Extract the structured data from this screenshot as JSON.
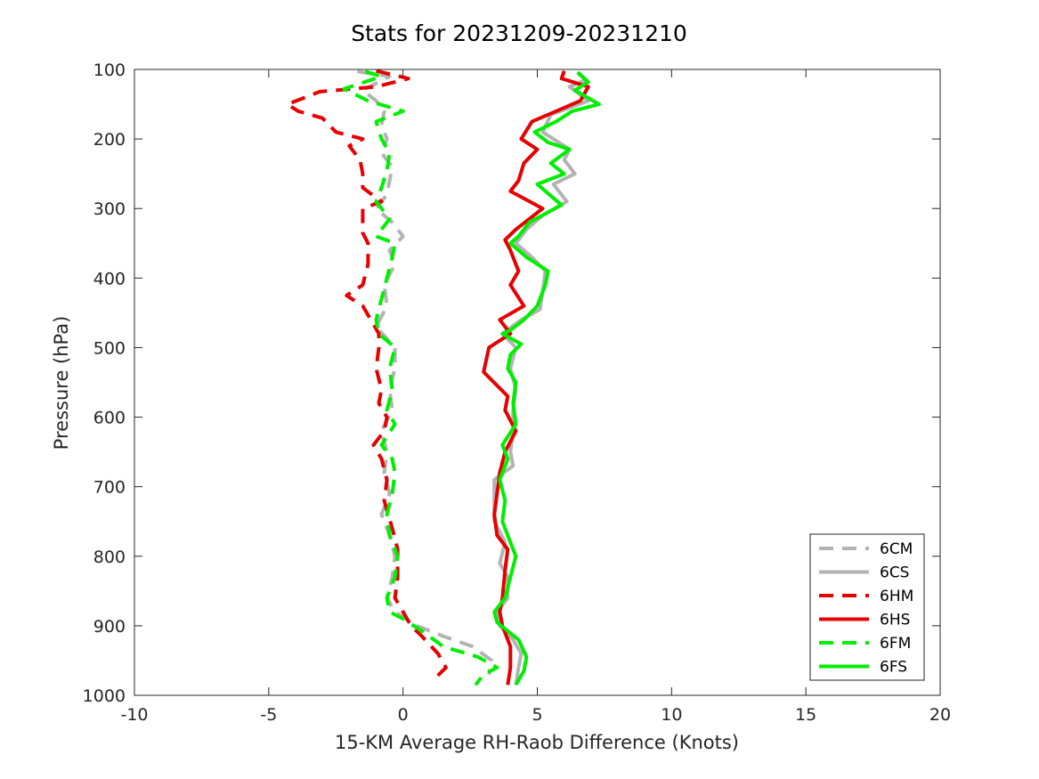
{
  "chart_data": {
    "type": "line",
    "title": "Stats for 20231209-20231210",
    "xlabel": "15-KM Average RH-Raob Difference (Knots)",
    "ylabel": "Pressure (hPa)",
    "xlim": [
      -10,
      20
    ],
    "ylim": [
      100,
      1000
    ],
    "y_reversed": true,
    "grid": false,
    "legend_position": "bottom-right",
    "xticks": [
      -10,
      -5,
      0,
      5,
      10,
      15,
      20
    ],
    "xtick_labels": [
      "-10",
      "-5",
      "0",
      "5",
      "10",
      "15",
      "20"
    ],
    "yticks": [
      100,
      200,
      300,
      400,
      500,
      600,
      700,
      800,
      900,
      1000
    ],
    "ytick_labels": [
      "100",
      "200",
      "300",
      "400",
      "500",
      "600",
      "700",
      "800",
      "900",
      "1000"
    ],
    "series": [
      {
        "name": "6CM",
        "color": "#b3b3b3",
        "dashed": true,
        "points": [
          [
            -1.7,
            103
          ],
          [
            -0.5,
            110
          ],
          [
            -1.0,
            120
          ],
          [
            -1.5,
            130
          ],
          [
            -1.0,
            145
          ],
          [
            -0.7,
            160
          ],
          [
            -0.8,
            180
          ],
          [
            -0.6,
            200
          ],
          [
            -0.8,
            220
          ],
          [
            -0.4,
            240
          ],
          [
            -0.5,
            260
          ],
          [
            -0.6,
            280
          ],
          [
            -1.0,
            300
          ],
          [
            -0.4,
            320
          ],
          [
            0.0,
            340
          ],
          [
            -0.5,
            360
          ],
          [
            -0.3,
            380
          ],
          [
            -0.7,
            410
          ],
          [
            -0.6,
            440
          ],
          [
            -1.0,
            470
          ],
          [
            -0.3,
            500
          ],
          [
            -0.3,
            530
          ],
          [
            -0.5,
            560
          ],
          [
            -0.4,
            590
          ],
          [
            -0.8,
            620
          ],
          [
            -0.6,
            650
          ],
          [
            -0.7,
            680
          ],
          [
            -0.5,
            710
          ],
          [
            -0.8,
            740
          ],
          [
            -0.5,
            770
          ],
          [
            -0.3,
            800
          ],
          [
            -0.4,
            830
          ],
          [
            -0.6,
            860
          ],
          [
            -0.3,
            880
          ],
          [
            0.5,
            900
          ],
          [
            1.5,
            915
          ],
          [
            2.6,
            930
          ],
          [
            3.3,
            950
          ],
          [
            3.2,
            970
          ]
        ]
      },
      {
        "name": "6CS",
        "color": "#b3b3b3",
        "dashed": false,
        "points": [
          [
            6.5,
            105
          ],
          [
            6.8,
            115
          ],
          [
            6.2,
            125
          ],
          [
            6.9,
            145
          ],
          [
            5.5,
            165
          ],
          [
            5.2,
            190
          ],
          [
            6.2,
            215
          ],
          [
            6.0,
            230
          ],
          [
            6.4,
            250
          ],
          [
            5.6,
            265
          ],
          [
            6.1,
            290
          ],
          [
            5.2,
            310
          ],
          [
            4.6,
            330
          ],
          [
            4.2,
            350
          ],
          [
            4.8,
            370
          ],
          [
            5.3,
            390
          ],
          [
            5.2,
            420
          ],
          [
            5.1,
            445
          ],
          [
            4.4,
            460
          ],
          [
            3.7,
            480
          ],
          [
            4.2,
            500
          ],
          [
            4.0,
            530
          ],
          [
            4.2,
            560
          ],
          [
            4.1,
            590
          ],
          [
            4.1,
            620
          ],
          [
            4.0,
            650
          ],
          [
            4.1,
            670
          ],
          [
            3.4,
            690
          ],
          [
            3.4,
            720
          ],
          [
            3.4,
            750
          ],
          [
            3.8,
            780
          ],
          [
            3.6,
            810
          ],
          [
            3.9,
            830
          ],
          [
            3.9,
            860
          ],
          [
            3.5,
            880
          ],
          [
            3.6,
            900
          ],
          [
            4.1,
            920
          ],
          [
            4.4,
            940
          ],
          [
            4.3,
            960
          ],
          [
            4.2,
            985
          ]
        ]
      },
      {
        "name": "6HM",
        "color": "#e60000",
        "dashed": true,
        "points": [
          [
            -1.0,
            102
          ],
          [
            0.2,
            113
          ],
          [
            -1.0,
            125
          ],
          [
            -3.1,
            132
          ],
          [
            -4.3,
            150
          ],
          [
            -3.9,
            160
          ],
          [
            -3.0,
            170
          ],
          [
            -2.5,
            190
          ],
          [
            -1.5,
            200
          ],
          [
            -2.0,
            210
          ],
          [
            -1.6,
            230
          ],
          [
            -1.5,
            250
          ],
          [
            -1.5,
            270
          ],
          [
            -0.8,
            290
          ],
          [
            -1.5,
            300
          ],
          [
            -1.5,
            335
          ],
          [
            -1.3,
            350
          ],
          [
            -1.3,
            380
          ],
          [
            -1.5,
            410
          ],
          [
            -2.1,
            425
          ],
          [
            -1.5,
            440
          ],
          [
            -1.2,
            460
          ],
          [
            -0.9,
            480
          ],
          [
            -0.9,
            500
          ],
          [
            -1.0,
            530
          ],
          [
            -0.8,
            560
          ],
          [
            -0.9,
            580
          ],
          [
            -0.6,
            600
          ],
          [
            -0.7,
            620
          ],
          [
            -1.1,
            640
          ],
          [
            -0.8,
            660
          ],
          [
            -0.6,
            690
          ],
          [
            -0.7,
            720
          ],
          [
            -0.4,
            760
          ],
          [
            -0.2,
            790
          ],
          [
            -0.2,
            830
          ],
          [
            -0.3,
            860
          ],
          [
            0.0,
            880
          ],
          [
            0.3,
            900
          ],
          [
            0.7,
            915
          ],
          [
            1.3,
            940
          ],
          [
            1.6,
            960
          ],
          [
            1.2,
            975
          ]
        ]
      },
      {
        "name": "6HS",
        "color": "#e60000",
        "dashed": false,
        "points": [
          [
            6.0,
            102
          ],
          [
            5.9,
            113
          ],
          [
            6.9,
            125
          ],
          [
            6.6,
            145
          ],
          [
            4.8,
            175
          ],
          [
            4.4,
            200
          ],
          [
            5.0,
            215
          ],
          [
            4.5,
            235
          ],
          [
            4.3,
            260
          ],
          [
            4.0,
            275
          ],
          [
            5.2,
            300
          ],
          [
            4.2,
            330
          ],
          [
            3.8,
            345
          ],
          [
            4.0,
            360
          ],
          [
            4.3,
            390
          ],
          [
            4.0,
            410
          ],
          [
            4.5,
            440
          ],
          [
            3.6,
            460
          ],
          [
            4.0,
            480
          ],
          [
            3.2,
            500
          ],
          [
            3.0,
            535
          ],
          [
            3.9,
            570
          ],
          [
            3.8,
            590
          ],
          [
            4.2,
            620
          ],
          [
            3.8,
            650
          ],
          [
            3.6,
            680
          ],
          [
            3.5,
            710
          ],
          [
            3.4,
            740
          ],
          [
            3.5,
            770
          ],
          [
            3.9,
            790
          ],
          [
            3.8,
            820
          ],
          [
            3.7,
            860
          ],
          [
            3.6,
            880
          ],
          [
            3.7,
            900
          ],
          [
            4.0,
            930
          ],
          [
            4.0,
            960
          ],
          [
            3.9,
            985
          ]
        ]
      },
      {
        "name": "6FM",
        "color": "#00ee00",
        "dashed": true,
        "points": [
          [
            -1.4,
            103
          ],
          [
            -0.8,
            110
          ],
          [
            -2.2,
            128
          ],
          [
            -1.3,
            145
          ],
          [
            0.0,
            160
          ],
          [
            -1.0,
            175
          ],
          [
            -0.8,
            200
          ],
          [
            -0.5,
            220
          ],
          [
            -0.6,
            245
          ],
          [
            -0.8,
            270
          ],
          [
            -1.0,
            290
          ],
          [
            -0.5,
            315
          ],
          [
            -1.0,
            340
          ],
          [
            -0.3,
            350
          ],
          [
            -0.4,
            370
          ],
          [
            -0.6,
            400
          ],
          [
            -0.8,
            430
          ],
          [
            -1.0,
            460
          ],
          [
            -0.9,
            480
          ],
          [
            -0.3,
            500
          ],
          [
            -0.5,
            530
          ],
          [
            -0.4,
            560
          ],
          [
            -0.6,
            590
          ],
          [
            -0.3,
            610
          ],
          [
            -0.8,
            640
          ],
          [
            -0.4,
            660
          ],
          [
            -0.3,
            680
          ],
          [
            -0.4,
            710
          ],
          [
            -0.6,
            740
          ],
          [
            -0.5,
            770
          ],
          [
            -0.2,
            800
          ],
          [
            -0.3,
            830
          ],
          [
            -0.6,
            860
          ],
          [
            -0.5,
            880
          ],
          [
            0.0,
            890
          ],
          [
            0.8,
            910
          ],
          [
            1.5,
            930
          ],
          [
            2.8,
            945
          ],
          [
            3.5,
            960
          ],
          [
            3.0,
            970
          ],
          [
            2.7,
            985
          ]
        ]
      },
      {
        "name": "6FS",
        "color": "#00ee00",
        "dashed": false,
        "points": [
          [
            6.5,
            104
          ],
          [
            6.9,
            118
          ],
          [
            6.4,
            130
          ],
          [
            7.3,
            150
          ],
          [
            6.3,
            160
          ],
          [
            5.7,
            175
          ],
          [
            4.9,
            190
          ],
          [
            5.4,
            205
          ],
          [
            6.2,
            215
          ],
          [
            5.5,
            235
          ],
          [
            6.0,
            250
          ],
          [
            5.0,
            265
          ],
          [
            5.9,
            295
          ],
          [
            4.7,
            320
          ],
          [
            4.3,
            340
          ],
          [
            4.0,
            350
          ],
          [
            4.6,
            370
          ],
          [
            5.4,
            390
          ],
          [
            5.3,
            410
          ],
          [
            5.0,
            440
          ],
          [
            4.5,
            460
          ],
          [
            4.0,
            475
          ],
          [
            3.7,
            480
          ],
          [
            4.4,
            495
          ],
          [
            4.0,
            510
          ],
          [
            3.9,
            530
          ],
          [
            4.2,
            550
          ],
          [
            4.1,
            580
          ],
          [
            4.2,
            610
          ],
          [
            3.7,
            640
          ],
          [
            3.9,
            660
          ],
          [
            3.6,
            690
          ],
          [
            3.8,
            720
          ],
          [
            3.7,
            750
          ],
          [
            4.0,
            780
          ],
          [
            4.2,
            800
          ],
          [
            4.0,
            830
          ],
          [
            3.8,
            860
          ],
          [
            3.4,
            880
          ],
          [
            3.5,
            895
          ],
          [
            4.3,
            920
          ],
          [
            4.6,
            945
          ],
          [
            4.5,
            965
          ],
          [
            4.2,
            985
          ]
        ]
      }
    ]
  }
}
